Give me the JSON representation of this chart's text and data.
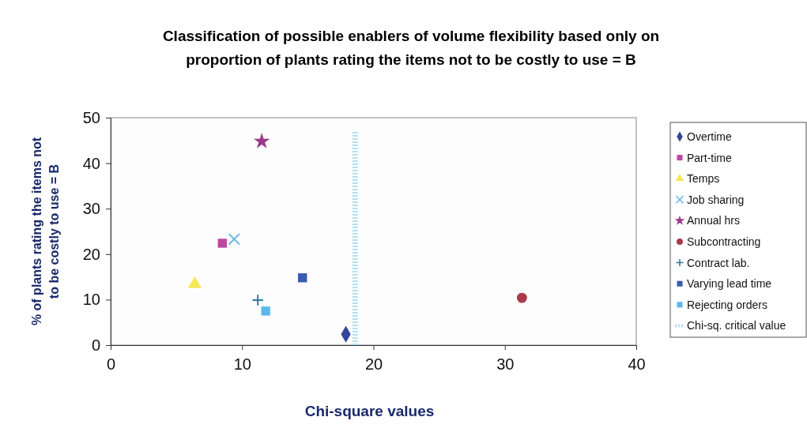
{
  "chart_data": {
    "type": "scatter",
    "title": "Classification of possible enablers of volume flexibility based only on\nproportion of plants rating the items not to be costly to use = B",
    "xlabel": "Chi-square values",
    "ylabel": "% of plants rating the items not\nto be costly to use = B",
    "xlim": [
      0,
      40
    ],
    "xticks": [
      0,
      10,
      20,
      30,
      40
    ],
    "ylim": [
      0,
      50
    ],
    "yticks": [
      0,
      10,
      20,
      30,
      40,
      50
    ],
    "grid": false,
    "legend": "right",
    "series": [
      {
        "name": "Overtime",
        "color": "#33449a",
        "marker": "diamond",
        "x": [
          17.9
        ],
        "values": [
          2.4
        ]
      },
      {
        "name": "Part-time",
        "color": "#c0479f",
        "marker": "square",
        "x": [
          8.5
        ],
        "values": [
          22.4
        ]
      },
      {
        "name": "Temps",
        "color": "#f5e85a",
        "marker": "triangle",
        "x": [
          6.4
        ],
        "values": [
          13.4
        ]
      },
      {
        "name": "Job sharing",
        "color": "#6bb6e6",
        "marker": "x",
        "x": [
          9.4
        ],
        "values": [
          23.3
        ]
      },
      {
        "name": "Annual hrs",
        "color": "#9a3a8a",
        "marker": "star",
        "x": [
          11.5
        ],
        "values": [
          44.8
        ]
      },
      {
        "name": "Subcontracting",
        "color": "#a83a4a",
        "marker": "circle",
        "x": [
          31.3
        ],
        "values": [
          10.4
        ]
      },
      {
        "name": "Contract lab.",
        "color": "#2f7a9a",
        "marker": "cross",
        "x": [
          11.2
        ],
        "values": [
          9.9
        ]
      },
      {
        "name": "Varying lead time",
        "color": "#3a5ab0",
        "marker": "square",
        "x": [
          14.6
        ],
        "values": [
          14.8
        ]
      },
      {
        "name": "Rejecting orders",
        "color": "#5cb8ea",
        "marker": "square",
        "x": [
          11.8
        ],
        "values": [
          7.5
        ]
      },
      {
        "name": "Chi-sq. critical value",
        "color": "#b4e0f0",
        "type": "line",
        "marker": "none",
        "line_style": "dotted",
        "x": [
          18.6,
          18.6
        ],
        "values": [
          0,
          47
        ]
      }
    ]
  }
}
